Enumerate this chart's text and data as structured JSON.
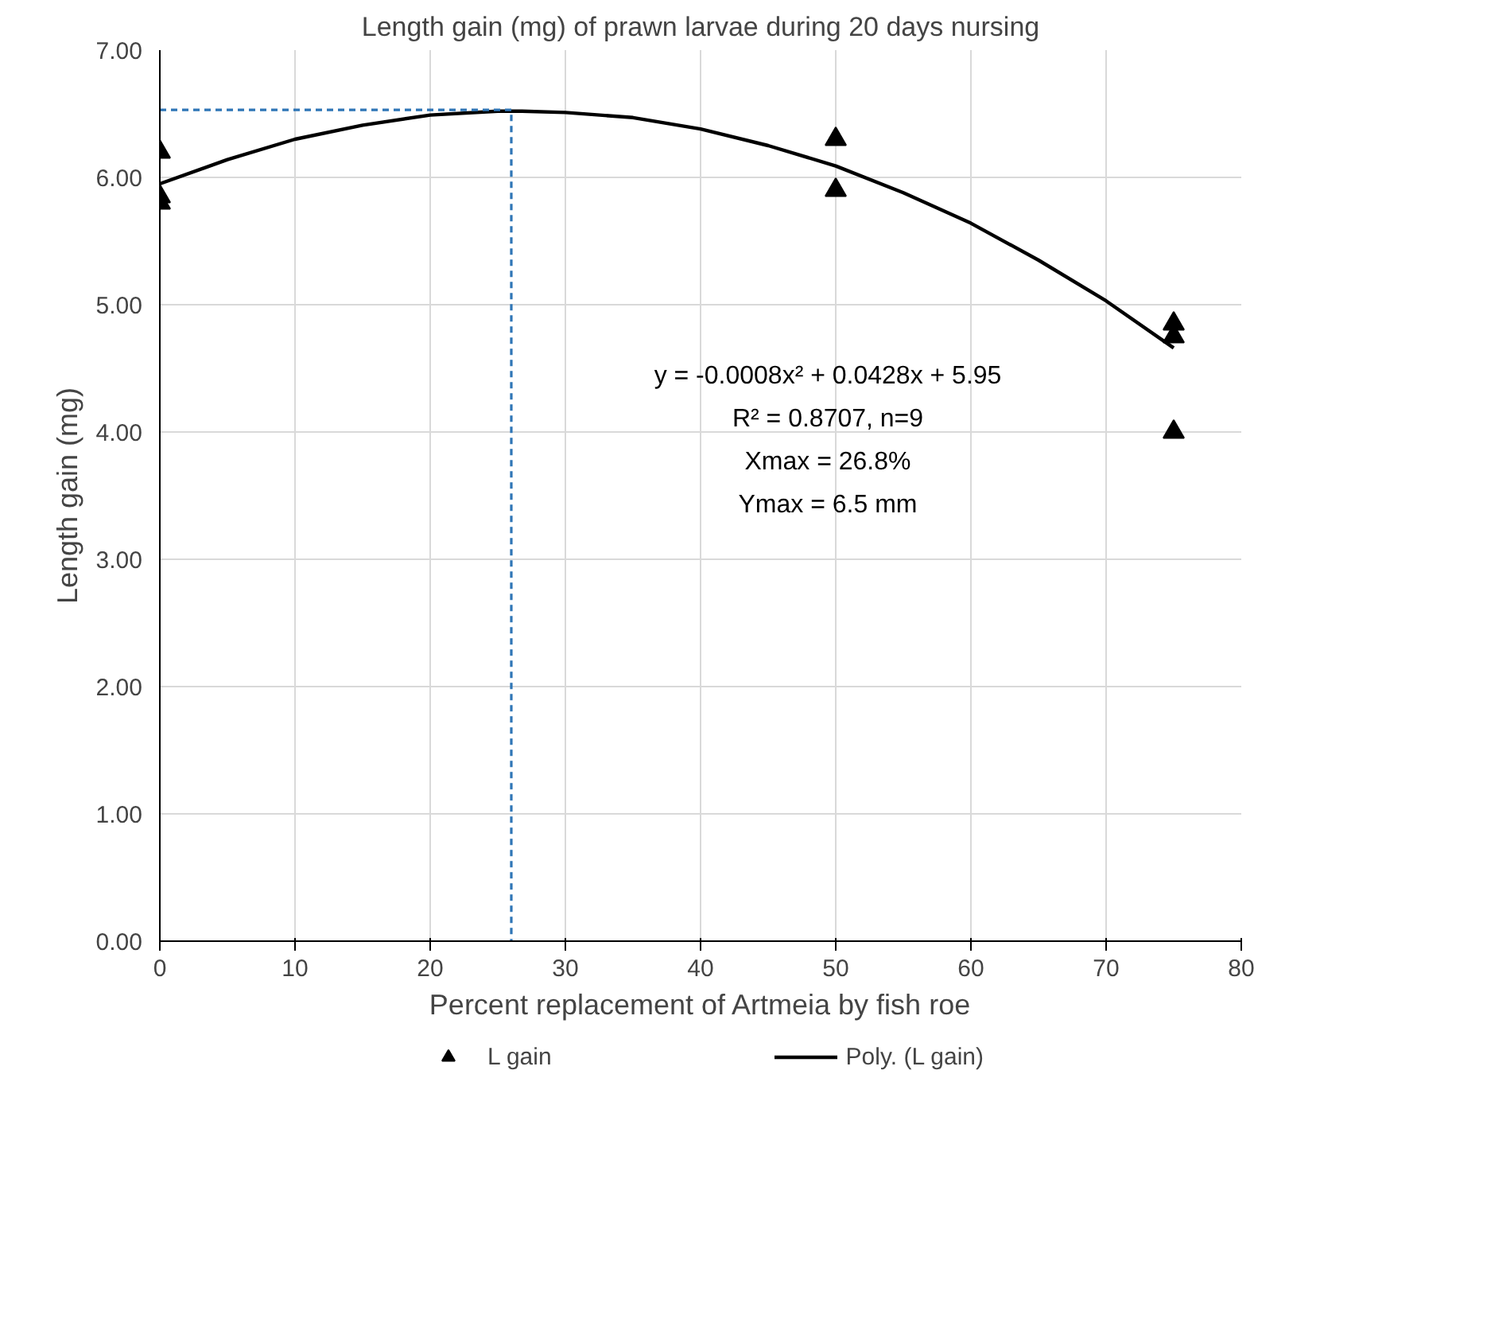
{
  "chart_data": {
    "type": "scatter",
    "title": "Length gain (mg) of prawn larvae during 20 days nursing",
    "xlabel": "Percent replacement of Artmeia by fish roe",
    "ylabel": "Length gain (mg)",
    "series": [
      {
        "name": "L gain",
        "type": "scatter",
        "color": "#000000",
        "marker": "triangle",
        "x": [
          0,
          0,
          0,
          50,
          50,
          75,
          75,
          75
        ],
        "values": [
          6.2,
          5.85,
          5.8,
          6.3,
          5.9,
          4.85,
          4.75,
          4.0
        ]
      },
      {
        "name": "Poly. (L gain)",
        "type": "line",
        "color": "#000000",
        "marker": "none",
        "line_style": "solid",
        "x": [
          0,
          5,
          10,
          15,
          20,
          25,
          26.8,
          30,
          35,
          40,
          45,
          50,
          55,
          60,
          65,
          70,
          75
        ],
        "values": [
          5.95,
          6.14,
          6.3,
          6.41,
          6.49,
          6.52,
          6.52,
          6.51,
          6.47,
          6.38,
          6.25,
          6.09,
          5.88,
          5.64,
          5.35,
          5.03,
          4.66
        ]
      },
      {
        "type": "line",
        "color": "#2e75b6",
        "marker": "none",
        "line_style": "dashed",
        "x": [
          0,
          26,
          26
        ],
        "values": [
          6.53,
          6.53,
          0
        ]
      }
    ],
    "annotations": [
      "y = -0.0008x² + 0.0428x + 5.95",
      "R² = 0.8707, n=9",
      "Xmax = 26.8%",
      "Ymax = 6.5 mm"
    ],
    "xlim": [
      0,
      80
    ],
    "xticks": [
      0,
      10,
      20,
      30,
      40,
      50,
      60,
      70,
      80
    ],
    "ylim": [
      0,
      7
    ],
    "yticks": [
      {
        "value": 0,
        "label": "0.00"
      },
      {
        "value": 1,
        "label": "1.00"
      },
      {
        "value": 2,
        "label": "2.00"
      },
      {
        "value": 3,
        "label": "3.00"
      },
      {
        "value": 4,
        "label": "4.00"
      },
      {
        "value": 5,
        "label": "5.00"
      },
      {
        "value": 6,
        "label": "6.00"
      },
      {
        "value": 7,
        "label": "7.00"
      }
    ],
    "grid": true,
    "legend": "bottom"
  }
}
